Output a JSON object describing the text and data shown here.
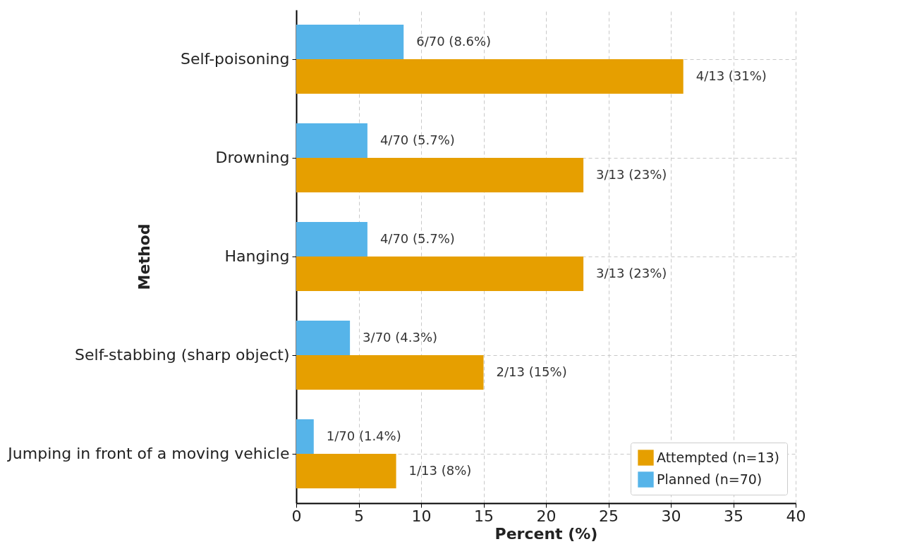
{
  "chart_data": {
    "type": "bar",
    "orientation": "horizontal",
    "xlabel": "Percent (%)",
    "ylabel": "Method",
    "categories": [
      "Self-poisoning",
      "Drowning",
      "Hanging",
      "Self-stabbing (sharp object)",
      "Jumping in front of a moving vehicle"
    ],
    "series": [
      {
        "name": "Attempted (n=13)",
        "color": "#e69f00",
        "values": [
          31,
          23,
          23,
          15,
          8
        ],
        "value_labels": [
          "4/13 (31%)",
          "3/13 (23%)",
          "3/13 (23%)",
          "2/13 (15%)",
          "1/13 (8%)"
        ]
      },
      {
        "name": "Planned (n=70)",
        "color": "#56b4e9",
        "values": [
          8.6,
          5.7,
          5.7,
          4.3,
          1.4
        ],
        "value_labels": [
          "6/70 (8.6%)",
          "4/70 (5.7%)",
          "4/70 (5.7%)",
          "3/70 (4.3%)",
          "1/70 (1.4%)"
        ]
      }
    ],
    "xlim": [
      0,
      40
    ],
    "xticks": [
      0,
      5,
      10,
      15,
      20,
      25,
      30,
      35,
      40
    ],
    "grid": true,
    "legend": "bottom right"
  }
}
